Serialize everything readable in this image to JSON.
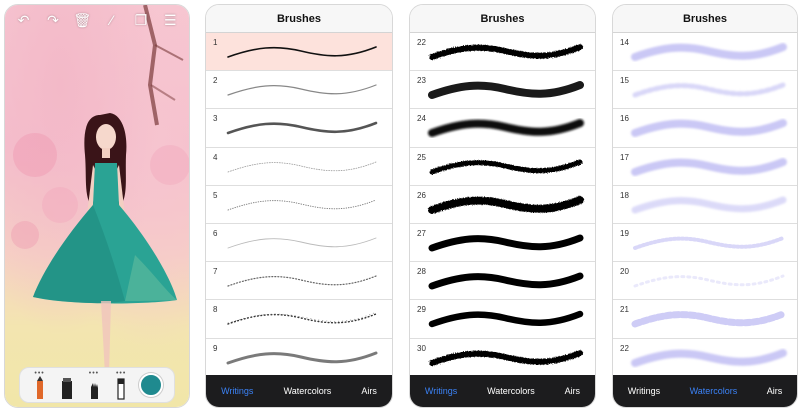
{
  "canvas_screen": {
    "toolbar": [
      {
        "name": "undo-icon",
        "glyph": "↶"
      },
      {
        "name": "redo-icon",
        "glyph": "↷"
      },
      {
        "name": "trash-icon",
        "glyph": "🗑"
      },
      {
        "name": "magic-wand-icon",
        "glyph": "⁄"
      },
      {
        "name": "duplicate-icon",
        "glyph": "❐"
      },
      {
        "name": "list-icon",
        "glyph": "☰"
      }
    ],
    "tray_dots": "•••",
    "selected_color": "#1f8a8f"
  },
  "panels": [
    {
      "title": "Brushes",
      "tabs": [
        "Writings",
        "Watercolors",
        "Airs"
      ],
      "active_tab": 0,
      "brushes": [
        {
          "num": "1",
          "style": "pen-dark",
          "selected": true
        },
        {
          "num": "2",
          "style": "pen-grey"
        },
        {
          "num": "3",
          "style": "pen-thick"
        },
        {
          "num": "4",
          "style": "hair-dotted"
        },
        {
          "num": "5",
          "style": "hair-dots"
        },
        {
          "num": "6",
          "style": "hair-faint"
        },
        {
          "num": "7",
          "style": "dotted"
        },
        {
          "num": "8",
          "style": "speckle"
        },
        {
          "num": "9",
          "style": "grey-thick"
        }
      ]
    },
    {
      "title": "Brushes",
      "tabs": [
        "Writings",
        "Watercolors",
        "Airs"
      ],
      "active_tab": 0,
      "brushes": [
        {
          "num": "22",
          "style": "ink-rough"
        },
        {
          "num": "23",
          "style": "ink-gradient"
        },
        {
          "num": "24",
          "style": "ink-blur"
        },
        {
          "num": "25",
          "style": "ink-rough2"
        },
        {
          "num": "26",
          "style": "ink-rough3"
        },
        {
          "num": "27",
          "style": "ink-bold"
        },
        {
          "num": "28",
          "style": "ink-bold"
        },
        {
          "num": "29",
          "style": "ink-bold2"
        },
        {
          "num": "30",
          "style": "ink-rough4"
        }
      ]
    },
    {
      "title": "Brushes",
      "tabs": [
        "Writings",
        "Watercolors",
        "Airs"
      ],
      "active_tab": 1,
      "brushes": [
        {
          "num": "14",
          "style": "wc-solid"
        },
        {
          "num": "15",
          "style": "wc-spotty"
        },
        {
          "num": "16",
          "style": "wc-solid"
        },
        {
          "num": "17",
          "style": "wc-solid"
        },
        {
          "num": "18",
          "style": "wc-light"
        },
        {
          "num": "19",
          "style": "wc-dotty"
        },
        {
          "num": "20",
          "style": "wc-faint"
        },
        {
          "num": "21",
          "style": "wc-blots"
        },
        {
          "num": "22",
          "style": "wc-solid"
        }
      ]
    }
  ],
  "colors": {
    "selected_row": "#fde2dc",
    "active_tab": "#3b82f6",
    "tab_bar": "#1c1c1e",
    "watercolor": "#b9b6f2"
  }
}
